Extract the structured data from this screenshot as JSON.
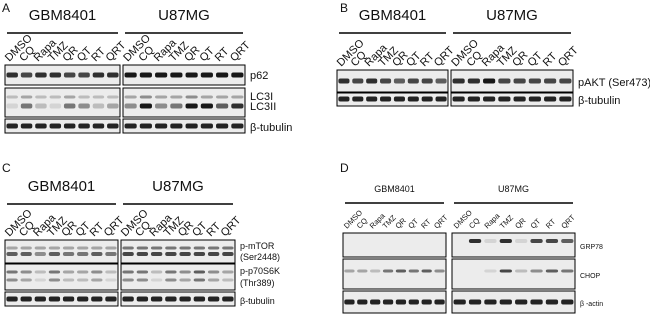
{
  "panels": [
    {
      "label": "A",
      "groups": [
        "GBM8401",
        "U87MG"
      ],
      "lanes": [
        "DMSO",
        "CQ",
        "Rapa",
        "TMZ",
        "QR",
        "QT",
        "RT",
        "QRT"
      ],
      "bands": [
        "p62",
        "LC3I",
        "LC3II",
        "β-tubulin"
      ]
    },
    {
      "label": "B",
      "groups": [
        "GBM8401",
        "U87MG"
      ],
      "lanes": [
        "DMSO",
        "CQ",
        "Rapa",
        "TMZ",
        "QR",
        "QT",
        "RT",
        "QRT"
      ],
      "bands": [
        "pAKT (Ser473)",
        "β-tubulin"
      ]
    },
    {
      "label": "C",
      "groups": [
        "GBM8401",
        "U87MG"
      ],
      "lanes": [
        "DMSO",
        "CQ",
        "Rapa",
        "TMZ",
        "QR",
        "QT",
        "RT",
        "QRT"
      ],
      "bands": [
        "p-mTOR",
        "(Ser2448)",
        "p-p70S6K",
        "(Thr389)",
        "β-tubulin"
      ]
    },
    {
      "label": "D",
      "groups": [
        "GBM8401",
        "U87MG"
      ],
      "lanes": [
        "DMSO",
        "CQ",
        "Rapa",
        "TMZ",
        "QR",
        "QT",
        "RT",
        "QRT"
      ],
      "bands": [
        "GRP78",
        "CHOP",
        "β -actin"
      ]
    }
  ]
}
